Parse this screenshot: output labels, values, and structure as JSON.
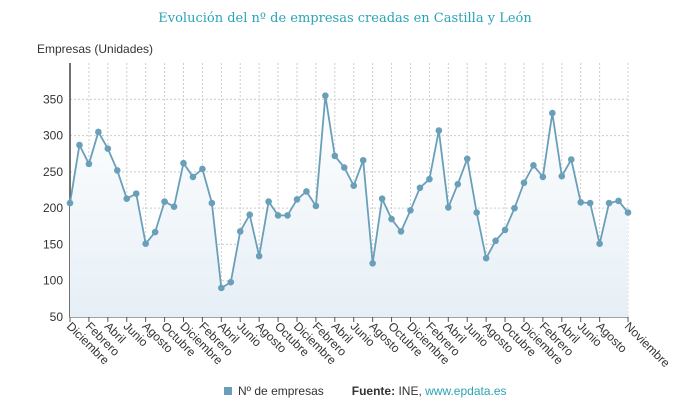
{
  "chart_data": {
    "type": "area",
    "title": "Evolución del nº de empresas creadas en Castilla y León",
    "ylabel": "Empresas (Unidades)",
    "xlabel": "",
    "ylim": [
      50,
      400
    ],
    "yticks": [
      50,
      100,
      150,
      200,
      250,
      300,
      350
    ],
    "grid": true,
    "legend_position": "bottom",
    "x_tick_labels": [
      "Diciembre",
      "Febrero",
      "Abril",
      "Junio",
      "Agosto",
      "Octubre",
      "Diciembre",
      "Febrero",
      "Abril",
      "Junio",
      "Agosto",
      "Octubre",
      "Diciembre",
      "Febrero",
      "Abril",
      "Junio",
      "Agosto",
      "Octubre",
      "Diciembre",
      "Febrero",
      "Abril",
      "Junio",
      "Agosto",
      "Octubre",
      "Diciembre",
      "Febrero",
      "Abril",
      "Junio",
      "Agosto",
      "Noviembre"
    ],
    "series": [
      {
        "name": "Nº de empresas",
        "color": "#6a9fba",
        "values": [
          207,
          287,
          261,
          305,
          282,
          252,
          213,
          220,
          151,
          167,
          209,
          202,
          262,
          243,
          254,
          207,
          90,
          98,
          168,
          191,
          134,
          209,
          190,
          190,
          212,
          223,
          203,
          355,
          272,
          256,
          231,
          266,
          124,
          213,
          185,
          168,
          197,
          228,
          240,
          307,
          201,
          233,
          268,
          194,
          131,
          155,
          170,
          200,
          235,
          259,
          243,
          331,
          244,
          267,
          208,
          207,
          151,
          207,
          210,
          194
        ]
      }
    ]
  },
  "legend": {
    "series_label": "Nº de empresas",
    "source_label": "Fuente:",
    "source_text": "INE,",
    "source_link": "www.epdata.es"
  }
}
